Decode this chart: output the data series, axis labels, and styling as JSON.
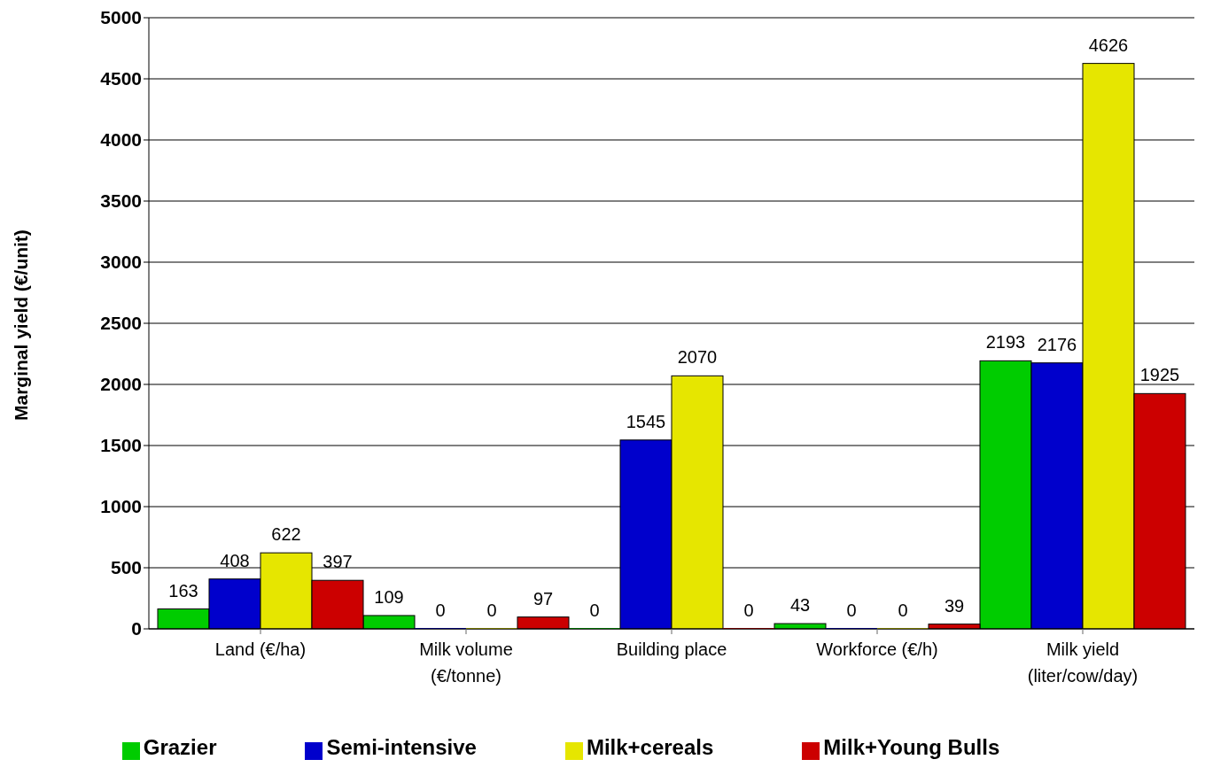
{
  "chart_data": {
    "type": "bar",
    "ylabel": "Marginal yield (€/unit)",
    "categories": [
      "Land (€/ha)",
      "Milk volume (€/tonne)",
      "Building place",
      "Workforce (€/h)",
      "Milk yield (liter/cow/day)"
    ],
    "series": [
      {
        "name": "Grazier",
        "color": "#00cc00",
        "values": [
          163,
          109,
          0,
          43,
          2193
        ]
      },
      {
        "name": "Semi-intensive",
        "color": "#0000cc",
        "values": [
          408,
          0,
          1545,
          0,
          2176
        ]
      },
      {
        "name": "Milk+cereals",
        "color": "#e6e600",
        "values": [
          622,
          0,
          2070,
          0,
          4626
        ]
      },
      {
        "name": "Milk+Young Bulls",
        "color": "#cc0000",
        "values": [
          397,
          97,
          0,
          39,
          1925
        ]
      }
    ],
    "ylim": [
      0,
      5000
    ],
    "yticks": [
      0,
      500,
      1000,
      1500,
      2000,
      2500,
      3000,
      3500,
      4000,
      4500,
      5000
    ],
    "grid": "y",
    "legend": "bottom",
    "data_labels": true
  }
}
